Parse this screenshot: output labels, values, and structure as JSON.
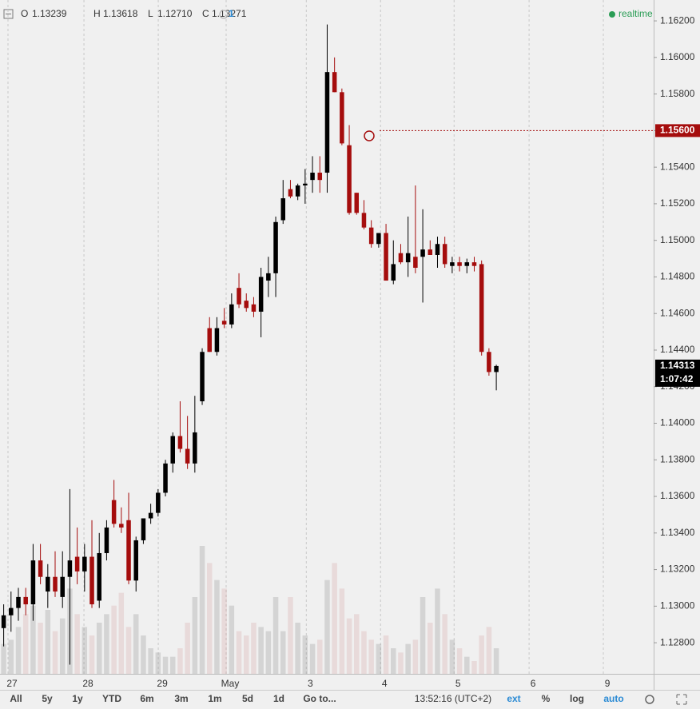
{
  "header": {
    "o": "O",
    "open": "1.13239",
    "h": "H",
    "high": "1.13618",
    "l": "L",
    "low": "1.12710",
    "c": "C",
    "close": "1.13271",
    "alerts": "1",
    "status": "realtime"
  },
  "chart_data": {
    "type": "candlestick",
    "x": [
      0,
      1,
      2,
      3,
      4,
      5,
      6,
      7,
      8,
      9,
      10,
      11,
      12,
      13,
      14,
      15,
      16,
      17,
      18,
      19,
      20,
      21,
      22,
      23,
      24,
      25,
      26,
      27,
      28,
      29,
      30,
      31,
      32,
      33,
      34,
      35,
      36,
      37,
      38,
      39,
      40,
      41,
      42,
      43,
      44,
      45,
      46,
      47,
      48,
      49,
      50,
      51,
      52,
      53,
      54,
      55,
      56,
      57,
      58,
      59,
      60,
      61,
      62,
      63,
      64,
      65,
      66,
      67
    ],
    "open": [
      1.1288,
      1.1295,
      1.1299,
      1.1305,
      1.1301,
      1.1325,
      1.1308,
      1.1316,
      1.1305,
      1.1316,
      1.1327,
      1.1319,
      1.1327,
      1.1303,
      1.1329,
      1.1358,
      1.1345,
      1.1347,
      1.1314,
      1.1336,
      1.1348,
      1.1351,
      1.1362,
      1.1378,
      1.1393,
      1.1386,
      1.1378,
      1.1412,
      1.1452,
      1.1439,
      1.1456,
      1.1454,
      1.1474,
      1.1467,
      1.1465,
      1.1461,
      1.1478,
      1.1482,
      1.1511,
      1.1528,
      1.1524,
      1.153,
      1.1533,
      1.1537,
      1.1537,
      1.1592,
      1.1581,
      1.1552,
      1.1526,
      1.1515,
      1.1507,
      1.1498,
      1.1504,
      1.1478,
      1.1493,
      1.1488,
      1.1491,
      1.1491,
      1.1495,
      1.1492,
      1.1498,
      1.1486,
      1.1488,
      1.1486,
      1.1488,
      1.1487,
      1.1439,
      1.1428
    ],
    "high": [
      1.1301,
      1.1308,
      1.131,
      1.131,
      1.1334,
      1.1334,
      1.1323,
      1.133,
      1.133,
      1.1364,
      1.1343,
      1.1334,
      1.1347,
      1.134,
      1.1347,
      1.1369,
      1.1354,
      1.1362,
      1.1338,
      1.1348,
      1.1356,
      1.1364,
      1.138,
      1.1395,
      1.1412,
      1.1404,
      1.1415,
      1.1441,
      1.1458,
      1.1458,
      1.1463,
      1.1471,
      1.1482,
      1.1471,
      1.1469,
      1.1485,
      1.1491,
      1.1513,
      1.1533,
      1.1533,
      1.1531,
      1.1539,
      1.1546,
      1.1546,
      1.1618,
      1.16,
      1.1583,
      1.1563,
      1.1526,
      1.1522,
      1.1511,
      1.1504,
      1.1509,
      1.15,
      1.1498,
      1.1513,
      1.153,
      1.1517,
      1.15,
      1.1502,
      1.1502,
      1.1491,
      1.1491,
      1.149,
      1.1491,
      1.1489,
      1.1441,
      1.1432
    ],
    "low": [
      1.1278,
      1.1286,
      1.1292,
      1.1295,
      1.1292,
      1.1312,
      1.1299,
      1.1305,
      1.1299,
      1.1268,
      1.1312,
      1.1308,
      1.1299,
      1.1299,
      1.1325,
      1.1343,
      1.134,
      1.1312,
      1.1308,
      1.1334,
      1.1345,
      1.1349,
      1.136,
      1.1373,
      1.1384,
      1.1375,
      1.1373,
      1.141,
      1.1439,
      1.1437,
      1.1452,
      1.1452,
      1.1463,
      1.1461,
      1.1458,
      1.1447,
      1.1469,
      1.1469,
      1.1509,
      1.1523,
      1.1522,
      1.152,
      1.1526,
      1.1526,
      1.1526,
      1.1581,
      1.1552,
      1.1514,
      1.1514,
      1.1506,
      1.1496,
      1.1496,
      1.1478,
      1.1476,
      1.1487,
      1.148,
      1.1482,
      1.1466,
      1.1492,
      1.1485,
      1.1485,
      1.1482,
      1.1483,
      1.1482,
      1.1483,
      1.1437,
      1.1426,
      1.1418
    ],
    "close": [
      1.1295,
      1.1299,
      1.1305,
      1.1301,
      1.1325,
      1.1316,
      1.1316,
      1.1308,
      1.1316,
      1.1325,
      1.1319,
      1.1327,
      1.1301,
      1.1329,
      1.1343,
      1.1345,
      1.1343,
      1.1314,
      1.1336,
      1.1348,
      1.1351,
      1.1362,
      1.1378,
      1.1393,
      1.1386,
      1.1378,
      1.1395,
      1.1439,
      1.1439,
      1.1452,
      1.1454,
      1.1465,
      1.1465,
      1.1463,
      1.1461,
      1.148,
      1.1482,
      1.151,
      1.1523,
      1.1524,
      1.153,
      1.1531,
      1.1537,
      1.1533,
      1.1592,
      1.1581,
      1.1553,
      1.1515,
      1.1515,
      1.1507,
      1.1498,
      1.1504,
      1.1478,
      1.1487,
      1.1488,
      1.1493,
      1.1485,
      1.1495,
      1.1492,
      1.1498,
      1.1487,
      1.1488,
      1.1486,
      1.1488,
      1.1486,
      1.1439,
      1.1428,
      1.14313
    ],
    "volume": [
      35,
      40,
      55,
      70,
      80,
      60,
      75,
      50,
      65,
      100,
      70,
      55,
      45,
      60,
      70,
      80,
      95,
      55,
      70,
      45,
      30,
      25,
      20,
      20,
      30,
      60,
      90,
      150,
      130,
      110,
      100,
      80,
      50,
      45,
      60,
      55,
      50,
      90,
      50,
      90,
      60,
      45,
      35,
      40,
      110,
      130,
      100,
      65,
      70,
      50,
      40,
      35,
      45,
      30,
      25,
      35,
      40,
      90,
      60,
      100,
      70,
      40,
      30,
      20,
      15,
      45,
      55,
      30
    ],
    "up_color": "#000000",
    "down_color": "#a50d0d",
    "xlim": [
      -0.5,
      88.4
    ],
    "xticks": [
      {
        "value": 1.13,
        "label": "27"
      },
      {
        "value": 11.46,
        "label": "28"
      },
      {
        "value": 21.57,
        "label": "29"
      },
      {
        "value": 30.8,
        "label": "May"
      },
      {
        "value": 41.7,
        "label": "3"
      },
      {
        "value": 51.8,
        "label": "4"
      },
      {
        "value": 61.8,
        "label": "5"
      },
      {
        "value": 72,
        "label": "6"
      },
      {
        "value": 82.1,
        "label": "9"
      }
    ],
    "ylim": [
      1.1263,
      1.16314
    ],
    "yticks": [
      {
        "value": 1.128,
        "label": "1.12800"
      },
      {
        "value": 1.13,
        "label": "1.13000"
      },
      {
        "value": 1.132,
        "label": "1.13200"
      },
      {
        "value": 1.134,
        "label": "1.13400"
      },
      {
        "value": 1.136,
        "label": "1.13600"
      },
      {
        "value": 1.138,
        "label": "1.13800"
      },
      {
        "value": 1.14,
        "label": "1.14000"
      },
      {
        "value": 1.142,
        "label": "1.14200"
      },
      {
        "value": 1.144,
        "label": "1.14400"
      },
      {
        "value": 1.146,
        "label": "1.14600"
      },
      {
        "value": 1.148,
        "label": "1.14800"
      },
      {
        "value": 1.15,
        "label": "1.15000"
      },
      {
        "value": 1.152,
        "label": "1.15200"
      },
      {
        "value": 1.154,
        "label": "1.15400"
      },
      {
        "value": 1.156,
        "label": "1.15600"
      },
      {
        "value": 1.158,
        "label": "1.15800"
      },
      {
        "value": 1.16,
        "label": "1.16000"
      },
      {
        "value": 1.162,
        "label": "1.16200"
      }
    ],
    "grid": "vertical",
    "alert_line": {
      "value": 1.156,
      "label": "1.15600",
      "color": "#a50d0d"
    },
    "last_price": {
      "value": 1.14313,
      "label": "1.14313"
    },
    "countdown": "1:07:42"
  },
  "toolbar": {
    "ranges": [
      "All",
      "5y",
      "1y",
      "YTD",
      "6m",
      "3m",
      "1m",
      "5d",
      "1d",
      "Go to..."
    ],
    "clock": "13:52:16 (UTC+2)",
    "options": [
      "ext",
      "%",
      "log",
      "auto"
    ]
  }
}
